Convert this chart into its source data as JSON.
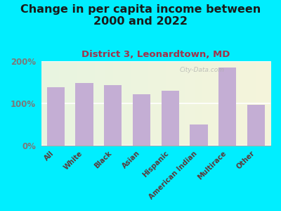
{
  "title": "Change in per capita income between\n2000 and 2022",
  "subtitle": "District 3, Leonardtown, MD",
  "categories": [
    "All",
    "White",
    "Black",
    "Asian",
    "Hispanic",
    "American Indian",
    "Multirace",
    "Other"
  ],
  "values": [
    138,
    148,
    143,
    122,
    130,
    50,
    185,
    97
  ],
  "bar_color": "#c4aed4",
  "background_outer": "#00eeff",
  "title_color": "#1a1a1a",
  "subtitle_color": "#a0324a",
  "tick_color": "#5a3a3a",
  "ytick_color": "#7a7a7a",
  "ylim": [
    0,
    200
  ],
  "yticks": [
    0,
    100,
    200
  ],
  "ytick_labels": [
    "0%",
    "100%",
    "200%"
  ],
  "title_fontsize": 11.5,
  "subtitle_fontsize": 9.5,
  "watermark": "City-Data.com"
}
